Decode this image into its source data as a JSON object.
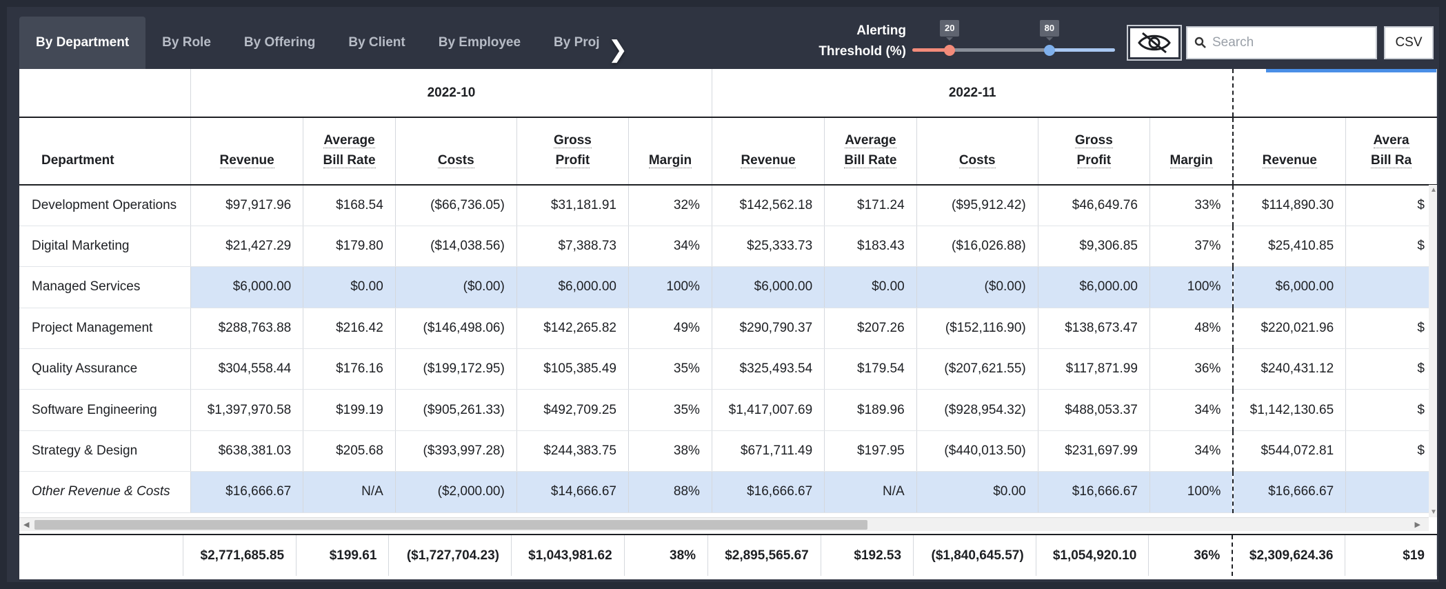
{
  "tabs": [
    {
      "label": "By Department",
      "active": true
    },
    {
      "label": "By Role",
      "active": false
    },
    {
      "label": "By Offering",
      "active": false
    },
    {
      "label": "By Client",
      "active": false
    },
    {
      "label": "By Employee",
      "active": false
    },
    {
      "label": "By Proj",
      "active": false
    }
  ],
  "alerting": {
    "label_line1": "Alerting",
    "label_line2": "Threshold (%)",
    "low_value": "20",
    "high_value": "80",
    "low_color": "#f38b7a",
    "high_color": "#a9c8f2"
  },
  "search": {
    "placeholder": "Search",
    "icon": "search-icon"
  },
  "csv_label": "CSV",
  "visibility_icon": "eye-off-icon",
  "table": {
    "row_header": "Department",
    "months": [
      "2022-10",
      "2022-11"
    ],
    "columns": [
      [
        "Revenue"
      ],
      [
        "Average",
        "Bill Rate"
      ],
      [
        "Costs"
      ],
      [
        "Gross",
        "Profit"
      ],
      [
        "Margin"
      ]
    ],
    "partial_columns": [
      [
        "Revenue"
      ],
      [
        "Avera",
        "Bill Ra"
      ]
    ],
    "rows": [
      {
        "name": "Development Operations",
        "highlight": false,
        "italic": false,
        "values": [
          "$97,917.96",
          "$168.54",
          "($66,736.05)",
          "$31,181.91",
          "32%",
          "$142,562.18",
          "$171.24",
          "($95,912.42)",
          "$46,649.76",
          "33%",
          "$114,890.30",
          "$"
        ]
      },
      {
        "name": "Digital Marketing",
        "highlight": false,
        "italic": false,
        "values": [
          "$21,427.29",
          "$179.80",
          "($14,038.56)",
          "$7,388.73",
          "34%",
          "$25,333.73",
          "$183.43",
          "($16,026.88)",
          "$9,306.85",
          "37%",
          "$25,410.85",
          "$"
        ]
      },
      {
        "name": "Managed Services",
        "highlight": true,
        "italic": false,
        "values": [
          "$6,000.00",
          "$0.00",
          "($0.00)",
          "$6,000.00",
          "100%",
          "$6,000.00",
          "$0.00",
          "($0.00)",
          "$6,000.00",
          "100%",
          "$6,000.00",
          ""
        ]
      },
      {
        "name": "Project Management",
        "highlight": false,
        "italic": false,
        "values": [
          "$288,763.88",
          "$216.42",
          "($146,498.06)",
          "$142,265.82",
          "49%",
          "$290,790.37",
          "$207.26",
          "($152,116.90)",
          "$138,673.47",
          "48%",
          "$220,021.96",
          "$"
        ]
      },
      {
        "name": "Quality Assurance",
        "highlight": false,
        "italic": false,
        "values": [
          "$304,558.44",
          "$176.16",
          "($199,172.95)",
          "$105,385.49",
          "35%",
          "$325,493.54",
          "$179.54",
          "($207,621.55)",
          "$117,871.99",
          "36%",
          "$240,431.12",
          "$"
        ]
      },
      {
        "name": "Software Engineering",
        "highlight": false,
        "italic": false,
        "values": [
          "$1,397,970.58",
          "$199.19",
          "($905,261.33)",
          "$492,709.25",
          "35%",
          "$1,417,007.69",
          "$189.96",
          "($928,954.32)",
          "$488,053.37",
          "34%",
          "$1,142,130.65",
          "$"
        ]
      },
      {
        "name": "Strategy & Design",
        "highlight": false,
        "italic": false,
        "values": [
          "$638,381.03",
          "$205.68",
          "($393,997.28)",
          "$244,383.75",
          "38%",
          "$671,711.49",
          "$197.95",
          "($440,013.50)",
          "$231,697.99",
          "34%",
          "$544,072.81",
          "$"
        ]
      },
      {
        "name": "Other Revenue & Costs",
        "highlight": true,
        "italic": true,
        "values": [
          "$16,666.67",
          "N/A",
          "($2,000.00)",
          "$14,666.67",
          "88%",
          "$16,666.67",
          "N/A",
          "$0.00",
          "$16,666.67",
          "100%",
          "$16,666.67",
          ""
        ]
      }
    ],
    "totals": [
      "$2,771,685.85",
      "$199.61",
      "($1,727,704.23)",
      "$1,043,981.62",
      "38%",
      "$2,895,565.67",
      "$192.53",
      "($1,840,645.57)",
      "$1,054,920.10",
      "36%",
      "$2,309,624.36",
      "$19"
    ]
  }
}
